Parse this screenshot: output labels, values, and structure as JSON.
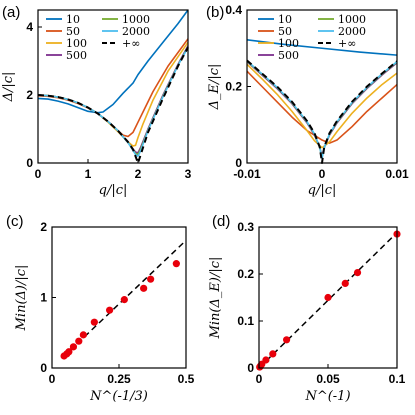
{
  "chart_data": [
    {
      "panel": "(a)",
      "type": "line",
      "xlabel": "q/|c|",
      "ylabel": "Δ/|c|",
      "xlim": [
        0,
        3
      ],
      "ylim": [
        0,
        4.5
      ],
      "xticks": [
        "0",
        "1",
        "2",
        "3"
      ],
      "yticks": [
        "0",
        "2",
        "4"
      ],
      "legend": "top-left, 2 columns",
      "series": [
        {
          "name": "10",
          "color": "#0072BD",
          "dashed": false,
          "x": [
            0,
            0.2,
            0.4,
            0.6,
            0.8,
            1.0,
            1.2,
            1.3,
            1.5,
            1.7,
            1.9,
            2.0,
            2.2,
            2.5,
            2.8,
            3.0
          ],
          "y": [
            1.9,
            1.88,
            1.82,
            1.74,
            1.63,
            1.52,
            1.48,
            1.5,
            1.72,
            2.05,
            2.35,
            2.6,
            3.0,
            3.55,
            4.1,
            4.5
          ]
        },
        {
          "name": "50",
          "color": "#D95319",
          "dashed": false,
          "x": [
            0,
            0.2,
            0.4,
            0.6,
            0.8,
            1.0,
            1.2,
            1.4,
            1.6,
            1.7,
            1.8,
            1.9,
            2.0,
            2.1,
            2.3,
            2.6,
            3.0
          ],
          "y": [
            1.98,
            1.96,
            1.92,
            1.85,
            1.75,
            1.62,
            1.45,
            1.22,
            0.95,
            0.82,
            0.78,
            0.9,
            1.2,
            1.5,
            2.1,
            2.85,
            3.65
          ]
        },
        {
          "name": "100",
          "color": "#EDB120",
          "dashed": false,
          "x": [
            0,
            0.2,
            0.4,
            0.6,
            0.8,
            1.0,
            1.2,
            1.4,
            1.6,
            1.8,
            1.9,
            1.95,
            2.0,
            2.1,
            2.3,
            2.6,
            3.0
          ],
          "y": [
            2.0,
            1.98,
            1.94,
            1.87,
            1.77,
            1.63,
            1.45,
            1.2,
            0.92,
            0.62,
            0.5,
            0.52,
            0.75,
            1.15,
            1.85,
            2.7,
            3.55
          ]
        },
        {
          "name": "500",
          "color": "#7E2F8E",
          "dashed": false,
          "x": [
            0,
            0.2,
            0.4,
            0.6,
            0.8,
            1.0,
            1.2,
            1.4,
            1.6,
            1.8,
            1.95,
            2.0,
            2.05,
            2.2,
            2.5,
            2.8,
            3.0
          ],
          "y": [
            2.0,
            1.98,
            1.94,
            1.87,
            1.77,
            1.63,
            1.45,
            1.22,
            0.95,
            0.6,
            0.32,
            0.3,
            0.45,
            1.0,
            2.0,
            2.9,
            3.45
          ]
        },
        {
          "name": "1000",
          "color": "#77AC30",
          "dashed": false,
          "x": [
            0,
            0.2,
            0.4,
            0.6,
            0.8,
            1.0,
            1.2,
            1.4,
            1.6,
            1.8,
            1.95,
            2.0,
            2.05,
            2.2,
            2.5,
            2.8,
            3.0
          ],
          "y": [
            2.0,
            1.98,
            1.94,
            1.87,
            1.77,
            1.63,
            1.45,
            1.22,
            0.95,
            0.6,
            0.28,
            0.25,
            0.4,
            0.97,
            1.97,
            2.88,
            3.42
          ]
        },
        {
          "name": "2000",
          "color": "#4DBEEE",
          "dashed": false,
          "x": [
            0,
            0.2,
            0.4,
            0.6,
            0.8,
            1.0,
            1.2,
            1.4,
            1.6,
            1.8,
            1.95,
            2.0,
            2.05,
            2.2,
            2.5,
            2.8,
            3.0
          ],
          "y": [
            2.0,
            1.98,
            1.94,
            1.87,
            1.77,
            1.63,
            1.45,
            1.22,
            0.95,
            0.6,
            0.25,
            0.2,
            0.35,
            0.95,
            1.95,
            2.87,
            3.4
          ]
        },
        {
          "name": "+∞",
          "color": "#000000",
          "dashed": true,
          "x": [
            0,
            0.2,
            0.4,
            0.6,
            0.8,
            1.0,
            1.2,
            1.4,
            1.6,
            1.8,
            1.9,
            2.0,
            2.1,
            2.2,
            2.5,
            2.8,
            3.0
          ],
          "y": [
            2.0,
            1.98,
            1.94,
            1.87,
            1.77,
            1.63,
            1.45,
            1.22,
            0.95,
            0.62,
            0.4,
            0.0,
            0.45,
            0.9,
            1.9,
            2.85,
            3.4
          ]
        }
      ]
    },
    {
      "panel": "(b)",
      "type": "line",
      "xlabel": "q/|c|",
      "ylabel": "Δ_E/|c|",
      "xlim": [
        -0.01,
        0.01
      ],
      "ylim": [
        0,
        0.4
      ],
      "xticks": [
        "-0.01",
        "0",
        "0.01"
      ],
      "yticks": [
        "0",
        "0.2",
        "0.4"
      ],
      "legend": "top, 2 columns",
      "series": [
        {
          "name": "10",
          "color": "#0072BD",
          "dashed": false,
          "x": [
            -0.01,
            -0.005,
            0,
            0.005,
            0.01
          ],
          "y": [
            0.322,
            0.31,
            0.3,
            0.29,
            0.282
          ]
        },
        {
          "name": "50",
          "color": "#D95319",
          "dashed": false,
          "x": [
            -0.01,
            -0.008,
            -0.006,
            -0.004,
            -0.002,
            0,
            0.001,
            0.002,
            0.004,
            0.006,
            0.008,
            0.01
          ],
          "y": [
            0.24,
            0.2,
            0.16,
            0.12,
            0.085,
            0.06,
            0.052,
            0.06,
            0.095,
            0.135,
            0.17,
            0.205
          ]
        },
        {
          "name": "100",
          "color": "#EDB120",
          "dashed": false,
          "x": [
            -0.01,
            -0.008,
            -0.006,
            -0.004,
            -0.002,
            -0.001,
            0,
            0.001,
            0.002,
            0.004,
            0.006,
            0.008,
            0.01
          ],
          "y": [
            0.258,
            0.22,
            0.18,
            0.135,
            0.085,
            0.058,
            0.04,
            0.055,
            0.082,
            0.13,
            0.17,
            0.205,
            0.235
          ]
        },
        {
          "name": "500",
          "color": "#7E2F8E",
          "dashed": false,
          "x": [
            -0.01,
            -0.008,
            -0.006,
            -0.004,
            -0.002,
            -0.001,
            -0.0003,
            0,
            0.0003,
            0.001,
            0.002,
            0.004,
            0.006,
            0.008,
            0.01
          ],
          "y": [
            0.265,
            0.23,
            0.195,
            0.155,
            0.105,
            0.073,
            0.04,
            0.02,
            0.04,
            0.073,
            0.105,
            0.155,
            0.195,
            0.23,
            0.262
          ]
        },
        {
          "name": "1000",
          "color": "#77AC30",
          "dashed": false,
          "x": [
            -0.01,
            -0.008,
            -0.006,
            -0.004,
            -0.002,
            -0.001,
            -0.0003,
            0,
            0.0003,
            0.001,
            0.002,
            0.004,
            0.006,
            0.008,
            0.01
          ],
          "y": [
            0.266,
            0.232,
            0.197,
            0.157,
            0.107,
            0.075,
            0.04,
            0.015,
            0.04,
            0.075,
            0.107,
            0.157,
            0.197,
            0.232,
            0.264
          ]
        },
        {
          "name": "2000",
          "color": "#4DBEEE",
          "dashed": false,
          "x": [
            -0.01,
            -0.008,
            -0.006,
            -0.004,
            -0.002,
            -0.001,
            -0.0003,
            0,
            0.0003,
            0.001,
            0.002,
            0.004,
            0.006,
            0.008,
            0.01
          ],
          "y": [
            0.267,
            0.233,
            0.198,
            0.158,
            0.108,
            0.076,
            0.041,
            0.012,
            0.041,
            0.076,
            0.108,
            0.158,
            0.198,
            0.233,
            0.265
          ]
        },
        {
          "name": "+∞",
          "color": "#000000",
          "dashed": true,
          "x": [
            -0.01,
            -0.008,
            -0.006,
            -0.004,
            -0.002,
            -0.001,
            -0.0003,
            0,
            0.0003,
            0.001,
            0.002,
            0.004,
            0.006,
            0.008,
            0.01
          ],
          "y": [
            0.268,
            0.234,
            0.2,
            0.16,
            0.11,
            0.078,
            0.042,
            0.0,
            0.042,
            0.078,
            0.11,
            0.16,
            0.2,
            0.234,
            0.266
          ]
        }
      ]
    },
    {
      "panel": "(c)",
      "type": "scatter",
      "xlabel": "N^(-1/3)",
      "ylabel": "Min(Δ)/|c|",
      "xlim": [
        0,
        0.5
      ],
      "ylim": [
        0,
        2
      ],
      "xticks": [
        "0",
        "0.25",
        "0.5"
      ],
      "yticks": [
        "0",
        "1",
        "2"
      ],
      "points": {
        "color": "#E8000B",
        "x": [
          0.045,
          0.055,
          0.063,
          0.08,
          0.1,
          0.117,
          0.158,
          0.215,
          0.27,
          0.342,
          0.368,
          0.464
        ],
        "y": [
          0.17,
          0.2,
          0.23,
          0.3,
          0.38,
          0.47,
          0.65,
          0.82,
          0.97,
          1.13,
          1.26,
          1.48
        ]
      },
      "fit_line": {
        "x": [
          0.04,
          0.5
        ],
        "y": [
          0.15,
          1.81
        ],
        "dashed": true,
        "color": "#000000"
      }
    },
    {
      "panel": "(d)",
      "type": "scatter",
      "xlabel": "N^(-1)",
      "ylabel": "Min(Δ_E)/|c|",
      "xlim": [
        0,
        0.1
      ],
      "ylim": [
        0,
        0.3
      ],
      "xticks": [
        "0",
        "0.05",
        "0.1"
      ],
      "yticks": [
        "0",
        "0.1",
        "0.2",
        "0.3"
      ],
      "points": {
        "color": "#E8000B",
        "x": [
          0.0005,
          0.001,
          0.002,
          0.005,
          0.01,
          0.02,
          0.05,
          0.0625,
          0.0714,
          0.1
        ],
        "y": [
          0.002,
          0.004,
          0.008,
          0.017,
          0.03,
          0.06,
          0.15,
          0.18,
          0.203,
          0.285
        ]
      },
      "fit_line": {
        "x": [
          0,
          0.1
        ],
        "y": [
          0,
          0.288
        ],
        "dashed": true,
        "color": "#000000"
      }
    }
  ]
}
